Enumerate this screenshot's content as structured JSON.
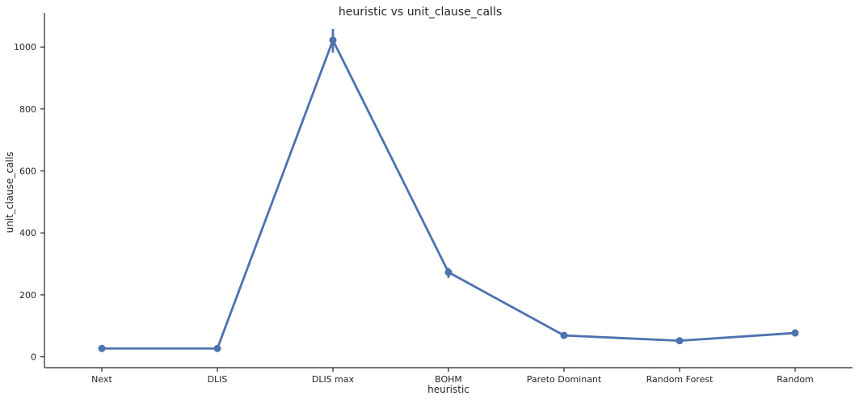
{
  "chart_data": {
    "type": "line",
    "title": "heuristic vs unit_clause_calls",
    "xlabel": "heuristic",
    "ylabel": "unit_clause_calls",
    "categories": [
      "Next",
      "DLIS",
      "DLIS max",
      "BOHM",
      "Pareto Dominant",
      "Random Forest",
      "Random"
    ],
    "values": [
      27,
      27,
      1022,
      273,
      69,
      52,
      77
    ],
    "error_low": [
      27,
      27,
      982,
      255,
      67,
      50,
      68
    ],
    "error_high": [
      27,
      27,
      1058,
      287,
      71,
      54,
      88
    ],
    "y_ticks": [
      0,
      200,
      400,
      600,
      800,
      1000
    ],
    "ylim": [
      -35,
      1110
    ],
    "grid": false,
    "color": "#4c72b0"
  }
}
